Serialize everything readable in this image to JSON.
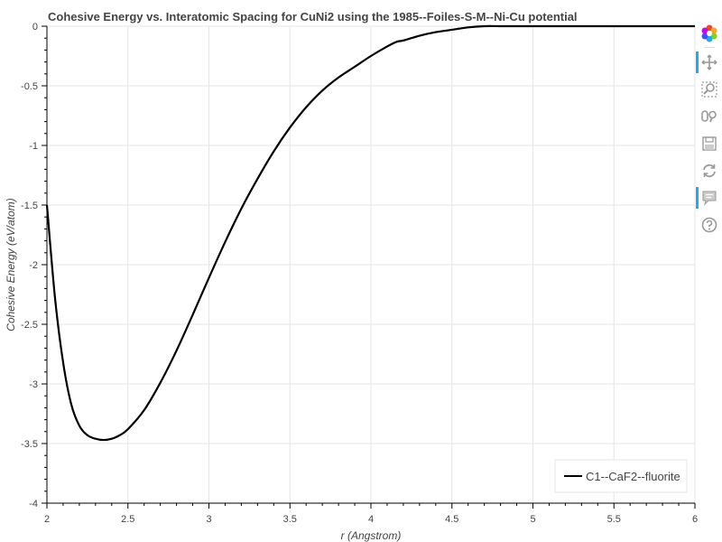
{
  "chart_data": {
    "type": "line",
    "title": "Cohesive Energy vs. Interatomic Spacing for CuNi2 using the 1985--Foiles-S-M--Ni-Cu potential",
    "xlabel": "r (Angstrom)",
    "ylabel": "Cohesive Energy (eV/atom)",
    "xlim": [
      2,
      6
    ],
    "ylim": [
      -4,
      0
    ],
    "x_ticks": [
      "2",
      "2.5",
      "3",
      "3.5",
      "4",
      "4.5",
      "5",
      "5.5",
      "6"
    ],
    "y_ticks": [
      "0",
      "-0.5",
      "-1",
      "-1.5",
      "-2",
      "-2.5",
      "-3",
      "-3.5",
      "-4"
    ],
    "grid": true,
    "legend_position": "bottom-right",
    "series": [
      {
        "name": "C1--CaF2--fluorite",
        "color": "#000000",
        "x": [
          2.0,
          2.05,
          2.1,
          2.15,
          2.2,
          2.25,
          2.3,
          2.35,
          2.4,
          2.45,
          2.5,
          2.6,
          2.7,
          2.8,
          2.9,
          3.0,
          3.1,
          3.2,
          3.3,
          3.4,
          3.5,
          3.6,
          3.7,
          3.8,
          3.9,
          4.0,
          4.1,
          4.16,
          4.2,
          4.3,
          4.4,
          4.5,
          4.6,
          4.7,
          4.8,
          4.9,
          5.0,
          5.5,
          6.0
        ],
        "y": [
          -1.5,
          -2.28,
          -2.82,
          -3.17,
          -3.35,
          -3.43,
          -3.46,
          -3.47,
          -3.46,
          -3.43,
          -3.38,
          -3.22,
          -2.99,
          -2.72,
          -2.42,
          -2.11,
          -1.81,
          -1.53,
          -1.28,
          -1.05,
          -0.85,
          -0.68,
          -0.54,
          -0.43,
          -0.34,
          -0.25,
          -0.17,
          -0.13,
          -0.12,
          -0.08,
          -0.05,
          -0.03,
          -0.01,
          0.0,
          0.0,
          0.0,
          0.0,
          0.0,
          0.0
        ]
      }
    ]
  },
  "toolbar": {
    "tools": [
      {
        "icon": "bokeh-logo-icon",
        "active": false
      },
      {
        "icon": "pan-icon",
        "active": true
      },
      {
        "icon": "box-zoom-icon",
        "active": false
      },
      {
        "icon": "wheel-zoom-icon",
        "active": false
      },
      {
        "icon": "save-icon",
        "active": false
      },
      {
        "icon": "reset-icon",
        "active": false
      },
      {
        "icon": "hover-icon",
        "active": true
      },
      {
        "icon": "help-icon",
        "active": false
      }
    ]
  }
}
